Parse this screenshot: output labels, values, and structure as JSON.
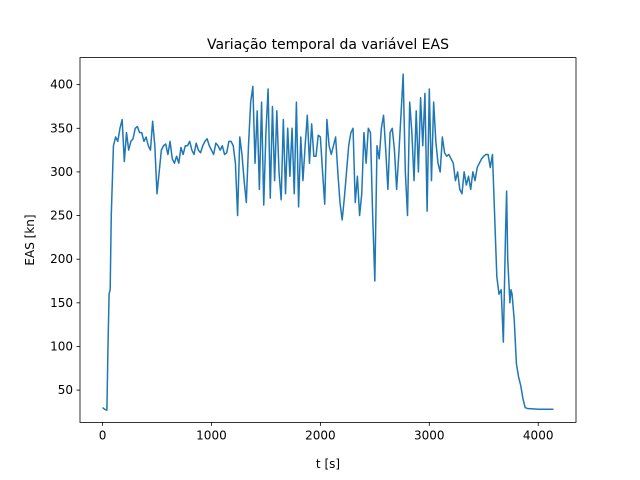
{
  "chart_data": {
    "type": "line",
    "title": "Variação temporal da variável EAS",
    "x_label": "t [s]",
    "y_label": "EAS [kn]",
    "x": [
      0,
      20,
      40,
      50,
      60,
      70,
      80,
      100,
      120,
      140,
      160,
      180,
      200,
      220,
      240,
      260,
      280,
      300,
      320,
      340,
      360,
      380,
      400,
      420,
      440,
      460,
      480,
      500,
      520,
      540,
      560,
      580,
      600,
      620,
      640,
      660,
      680,
      700,
      720,
      740,
      760,
      780,
      800,
      820,
      840,
      860,
      880,
      900,
      920,
      940,
      960,
      980,
      1000,
      1020,
      1040,
      1060,
      1080,
      1100,
      1120,
      1140,
      1160,
      1180,
      1200,
      1220,
      1240,
      1260,
      1280,
      1300,
      1320,
      1340,
      1360,
      1380,
      1400,
      1420,
      1440,
      1460,
      1480,
      1500,
      1520,
      1540,
      1560,
      1580,
      1600,
      1620,
      1640,
      1660,
      1680,
      1700,
      1720,
      1740,
      1760,
      1780,
      1800,
      1820,
      1840,
      1860,
      1880,
      1900,
      1920,
      1940,
      1960,
      1980,
      2000,
      2020,
      2040,
      2060,
      2080,
      2100,
      2120,
      2140,
      2160,
      2180,
      2200,
      2220,
      2240,
      2260,
      2280,
      2300,
      2320,
      2340,
      2360,
      2380,
      2400,
      2420,
      2440,
      2460,
      2480,
      2500,
      2520,
      2540,
      2560,
      2580,
      2600,
      2620,
      2640,
      2660,
      2680,
      2700,
      2720,
      2740,
      2760,
      2780,
      2800,
      2820,
      2840,
      2860,
      2880,
      2900,
      2920,
      2940,
      2960,
      2980,
      3000,
      3020,
      3040,
      3060,
      3080,
      3100,
      3120,
      3140,
      3160,
      3180,
      3200,
      3220,
      3240,
      3260,
      3280,
      3300,
      3320,
      3340,
      3360,
      3380,
      3400,
      3420,
      3440,
      3460,
      3480,
      3500,
      3520,
      3540,
      3560,
      3580,
      3600,
      3620,
      3640,
      3660,
      3680,
      3700,
      3710,
      3720,
      3740,
      3750,
      3760,
      3780,
      3800,
      3820,
      3840,
      3860,
      3880,
      3900,
      4000,
      4140
    ],
    "series": [
      {
        "color": "#1f77b4",
        "values": [
          30,
          28,
          27,
          100,
          160,
          165,
          250,
          330,
          340,
          335,
          350,
          360,
          312,
          345,
          325,
          335,
          338,
          350,
          352,
          345,
          345,
          335,
          340,
          330,
          325,
          358,
          330,
          275,
          300,
          325,
          330,
          332,
          320,
          335,
          315,
          310,
          318,
          310,
          328,
          320,
          330,
          330,
          335,
          325,
          320,
          333,
          325,
          322,
          330,
          335,
          338,
          330,
          325,
          320,
          333,
          330,
          325,
          330,
          320,
          322,
          335,
          335,
          330,
          310,
          250,
          340,
          320,
          290,
          265,
          330,
          380,
          398,
          310,
          370,
          280,
          380,
          262,
          345,
          395,
          270,
          375,
          290,
          370,
          300,
          268,
          360,
          275,
          350,
          295,
          350,
          275,
          380,
          260,
          340,
          290,
          330,
          365,
          310,
          355,
          318,
          318,
          342,
          340,
          300,
          263,
          360,
          330,
          320,
          330,
          340,
          300,
          265,
          245,
          270,
          300,
          330,
          345,
          350,
          265,
          295,
          250,
          275,
          345,
          310,
          350,
          345,
          250,
          175,
          330,
          315,
          350,
          365,
          325,
          280,
          345,
          350,
          325,
          280,
          320,
          365,
          412,
          300,
          250,
          380,
          345,
          290,
          370,
          300,
          385,
          330,
          390,
          255,
          395,
          290,
          380,
          335,
          310,
          300,
          340,
          322,
          318,
          320,
          315,
          310,
          290,
          300,
          280,
          275,
          300,
          285,
          295,
          280,
          300,
          290,
          305,
          310,
          315,
          318,
          320,
          320,
          305,
          320,
          250,
          180,
          160,
          165,
          105,
          230,
          278,
          200,
          150,
          165,
          160,
          130,
          80,
          65,
          55,
          40,
          30,
          29,
          28,
          28
        ]
      }
    ],
    "xlim": [
      -207,
      4347
    ],
    "ylim": [
      13,
      431
    ],
    "xticks": [
      0,
      1000,
      2000,
      3000,
      4000
    ],
    "yticks": [
      50,
      100,
      150,
      200,
      250,
      300,
      350,
      400
    ]
  }
}
